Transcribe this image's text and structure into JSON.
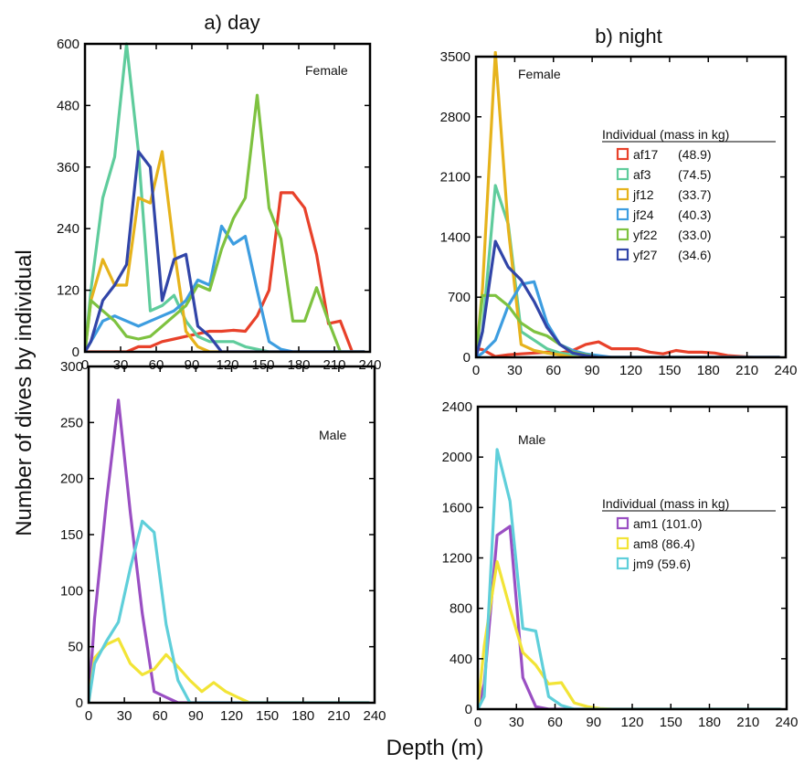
{
  "figure": {
    "ylabel": "Number of dives by individual",
    "xlabel": "Depth (m)",
    "col_titles": [
      "a) day",
      "b) night"
    ]
  },
  "colors": {
    "af17": "#e8412a",
    "af3": "#5fcc9c",
    "jf12": "#e6b31c",
    "jf24": "#3d9de0",
    "yf22": "#7ec240",
    "yf27": "#3145a8",
    "am1": "#9a4fc3",
    "am8": "#f2e436",
    "jm9": "#5fcfda"
  },
  "chart_data": [
    {
      "id": "day-female",
      "type": "line",
      "label": "Female",
      "xlim": [
        0,
        240
      ],
      "ylim": [
        0,
        600
      ],
      "xticks": [
        0,
        30,
        60,
        90,
        120,
        150,
        180,
        210,
        240
      ],
      "yticks": [
        0,
        120,
        240,
        360,
        480,
        600
      ],
      "x": [
        0,
        5,
        15,
        25,
        35,
        45,
        55,
        65,
        75,
        85,
        95,
        105,
        115,
        125,
        135,
        145,
        155,
        165,
        175,
        185,
        195,
        205,
        215,
        225,
        235
      ],
      "series": [
        {
          "key": "af17",
          "values": [
            0,
            0,
            0,
            0,
            0,
            10,
            10,
            20,
            25,
            30,
            35,
            40,
            40,
            42,
            40,
            70,
            120,
            310,
            310,
            280,
            190,
            55,
            60,
            0,
            0
          ]
        },
        {
          "key": "af3",
          "values": [
            0,
            120,
            300,
            380,
            600,
            390,
            80,
            90,
            110,
            60,
            30,
            20,
            20,
            20,
            10,
            5,
            0,
            0,
            0,
            0,
            0,
            0,
            0,
            0,
            0
          ]
        },
        {
          "key": "jf12",
          "values": [
            0,
            100,
            180,
            130,
            130,
            300,
            290,
            390,
            200,
            40,
            10,
            0,
            0,
            0,
            0,
            0,
            0,
            0,
            0,
            0,
            0,
            0,
            0,
            0,
            0
          ]
        },
        {
          "key": "jf24",
          "values": [
            0,
            20,
            60,
            70,
            60,
            50,
            60,
            70,
            80,
            100,
            140,
            130,
            245,
            210,
            225,
            120,
            20,
            5,
            0,
            0,
            0,
            0,
            0,
            0,
            0
          ]
        },
        {
          "key": "yf22",
          "values": [
            0,
            100,
            80,
            60,
            30,
            25,
            30,
            50,
            70,
            90,
            130,
            120,
            200,
            260,
            300,
            500,
            280,
            220,
            60,
            60,
            125,
            60,
            0,
            0,
            0
          ]
        },
        {
          "key": "yf27",
          "values": [
            0,
            20,
            100,
            130,
            170,
            390,
            360,
            100,
            180,
            190,
            50,
            30,
            0,
            0,
            0,
            0,
            0,
            0,
            0,
            0,
            0,
            0,
            0,
            0,
            0
          ]
        }
      ]
    },
    {
      "id": "night-female",
      "type": "line",
      "label": "Female",
      "xlim": [
        0,
        240
      ],
      "ylim": [
        0,
        3500
      ],
      "xticks": [
        0,
        30,
        60,
        90,
        120,
        150,
        180,
        210,
        240
      ],
      "yticks": [
        0,
        700,
        1400,
        2100,
        2800,
        3500
      ],
      "legend": {
        "title": "Individual (mass in kg)",
        "placement": "right",
        "entries": [
          {
            "key": "af17",
            "name": "af17",
            "mass": "(48.9)"
          },
          {
            "key": "af3",
            "name": "af3",
            "mass": "(74.5)"
          },
          {
            "key": "jf12",
            "name": "jf12",
            "mass": "(33.7)"
          },
          {
            "key": "jf24",
            "name": "jf24",
            "mass": "(40.3)"
          },
          {
            "key": "yf22",
            "name": "yf22",
            "mass": "(33.0)"
          },
          {
            "key": "yf27",
            "name": "yf27",
            "mass": "(34.6)"
          }
        ]
      },
      "x": [
        0,
        5,
        15,
        25,
        35,
        45,
        55,
        65,
        75,
        85,
        95,
        105,
        115,
        125,
        135,
        145,
        155,
        165,
        175,
        185,
        195,
        205,
        215,
        225,
        235
      ],
      "series": [
        {
          "key": "af17",
          "values": [
            100,
            90,
            10,
            30,
            40,
            50,
            60,
            50,
            80,
            150,
            180,
            100,
            100,
            100,
            60,
            40,
            80,
            60,
            60,
            50,
            20,
            10,
            0,
            0,
            0
          ]
        },
        {
          "key": "af3",
          "values": [
            0,
            300,
            2000,
            1550,
            300,
            200,
            100,
            50,
            30,
            0,
            0,
            0,
            0,
            0,
            0,
            0,
            0,
            0,
            0,
            0,
            0,
            0,
            0,
            0,
            0
          ]
        },
        {
          "key": "jf12",
          "values": [
            0,
            800,
            3550,
            1500,
            150,
            80,
            50,
            30,
            0,
            0,
            0,
            0,
            0,
            0,
            0,
            0,
            0,
            0,
            0,
            0,
            0,
            0,
            0,
            0,
            0
          ]
        },
        {
          "key": "jf24",
          "values": [
            0,
            50,
            200,
            600,
            850,
            880,
            400,
            150,
            80,
            40,
            20,
            0,
            0,
            0,
            0,
            0,
            0,
            0,
            0,
            0,
            0,
            0,
            0,
            0,
            0
          ]
        },
        {
          "key": "yf22",
          "values": [
            0,
            720,
            720,
            600,
            400,
            300,
            250,
            150,
            60,
            30,
            0,
            0,
            0,
            0,
            0,
            0,
            0,
            0,
            0,
            0,
            0,
            0,
            0,
            0,
            0
          ]
        },
        {
          "key": "yf27",
          "values": [
            0,
            300,
            1350,
            1050,
            900,
            650,
            350,
            150,
            50,
            20,
            0,
            0,
            0,
            0,
            0,
            0,
            0,
            0,
            0,
            0,
            0,
            0,
            0,
            0,
            0
          ]
        }
      ]
    },
    {
      "id": "day-male",
      "type": "line",
      "label": "Male",
      "xlim": [
        0,
        240
      ],
      "ylim": [
        0,
        300
      ],
      "xticks": [
        0,
        30,
        60,
        90,
        120,
        150,
        180,
        210,
        240
      ],
      "yticks": [
        0,
        50,
        100,
        150,
        200,
        250,
        300
      ],
      "x": [
        0,
        5,
        15,
        25,
        35,
        45,
        55,
        65,
        75,
        85,
        95,
        105,
        115,
        125,
        135,
        145,
        155,
        165,
        175,
        185,
        195,
        205,
        215,
        225,
        235
      ],
      "series": [
        {
          "key": "am1",
          "values": [
            0,
            75,
            180,
            270,
            170,
            80,
            10,
            5,
            0,
            0,
            0,
            0,
            0,
            0,
            0,
            0,
            0,
            0,
            0,
            0,
            0,
            0,
            0,
            0,
            0
          ]
        },
        {
          "key": "am8",
          "values": [
            0,
            40,
            52,
            57,
            35,
            25,
            30,
            43,
            32,
            20,
            10,
            18,
            10,
            5,
            0,
            0,
            0,
            0,
            0,
            0,
            0,
            0,
            0,
            0,
            0
          ]
        },
        {
          "key": "jm9",
          "values": [
            0,
            35,
            55,
            72,
            120,
            162,
            152,
            70,
            20,
            0,
            0,
            0,
            0,
            0,
            0,
            0,
            0,
            0,
            0,
            0,
            0,
            0,
            0,
            0,
            0
          ]
        }
      ]
    },
    {
      "id": "night-male",
      "type": "line",
      "label": "Male",
      "xlim": [
        0,
        240
      ],
      "ylim": [
        0,
        2400
      ],
      "xticks": [
        0,
        30,
        60,
        90,
        120,
        150,
        180,
        210,
        240
      ],
      "yticks": [
        0,
        400,
        800,
        1200,
        1600,
        2000,
        2400
      ],
      "legend": {
        "title": "Individual (mass in kg)",
        "placement": "right",
        "entries": [
          {
            "key": "am1",
            "name": "am1 (101.0)",
            "mass": ""
          },
          {
            "key": "am8",
            "name": "am8 (86.4)",
            "mass": ""
          },
          {
            "key": "jm9",
            "name": "jm9 (59.6)",
            "mass": ""
          }
        ]
      },
      "x": [
        0,
        5,
        15,
        25,
        35,
        45,
        55,
        65,
        75,
        85,
        95,
        105,
        115,
        125,
        135,
        145,
        155,
        165,
        175,
        185,
        195,
        205,
        215,
        225,
        235
      ],
      "series": [
        {
          "key": "am1",
          "values": [
            0,
            200,
            1380,
            1450,
            250,
            20,
            0,
            0,
            0,
            0,
            0,
            0,
            0,
            0,
            0,
            0,
            0,
            0,
            0,
            0,
            0,
            0,
            0,
            0,
            0
          ]
        },
        {
          "key": "am8",
          "values": [
            0,
            500,
            1170,
            800,
            450,
            350,
            200,
            210,
            50,
            20,
            5,
            0,
            0,
            0,
            0,
            0,
            0,
            0,
            0,
            0,
            0,
            0,
            0,
            0,
            0
          ]
        },
        {
          "key": "jm9",
          "values": [
            0,
            100,
            2060,
            1650,
            640,
            620,
            100,
            30,
            0,
            0,
            0,
            0,
            0,
            0,
            0,
            0,
            0,
            0,
            0,
            0,
            0,
            0,
            0,
            0,
            0
          ]
        }
      ]
    }
  ]
}
